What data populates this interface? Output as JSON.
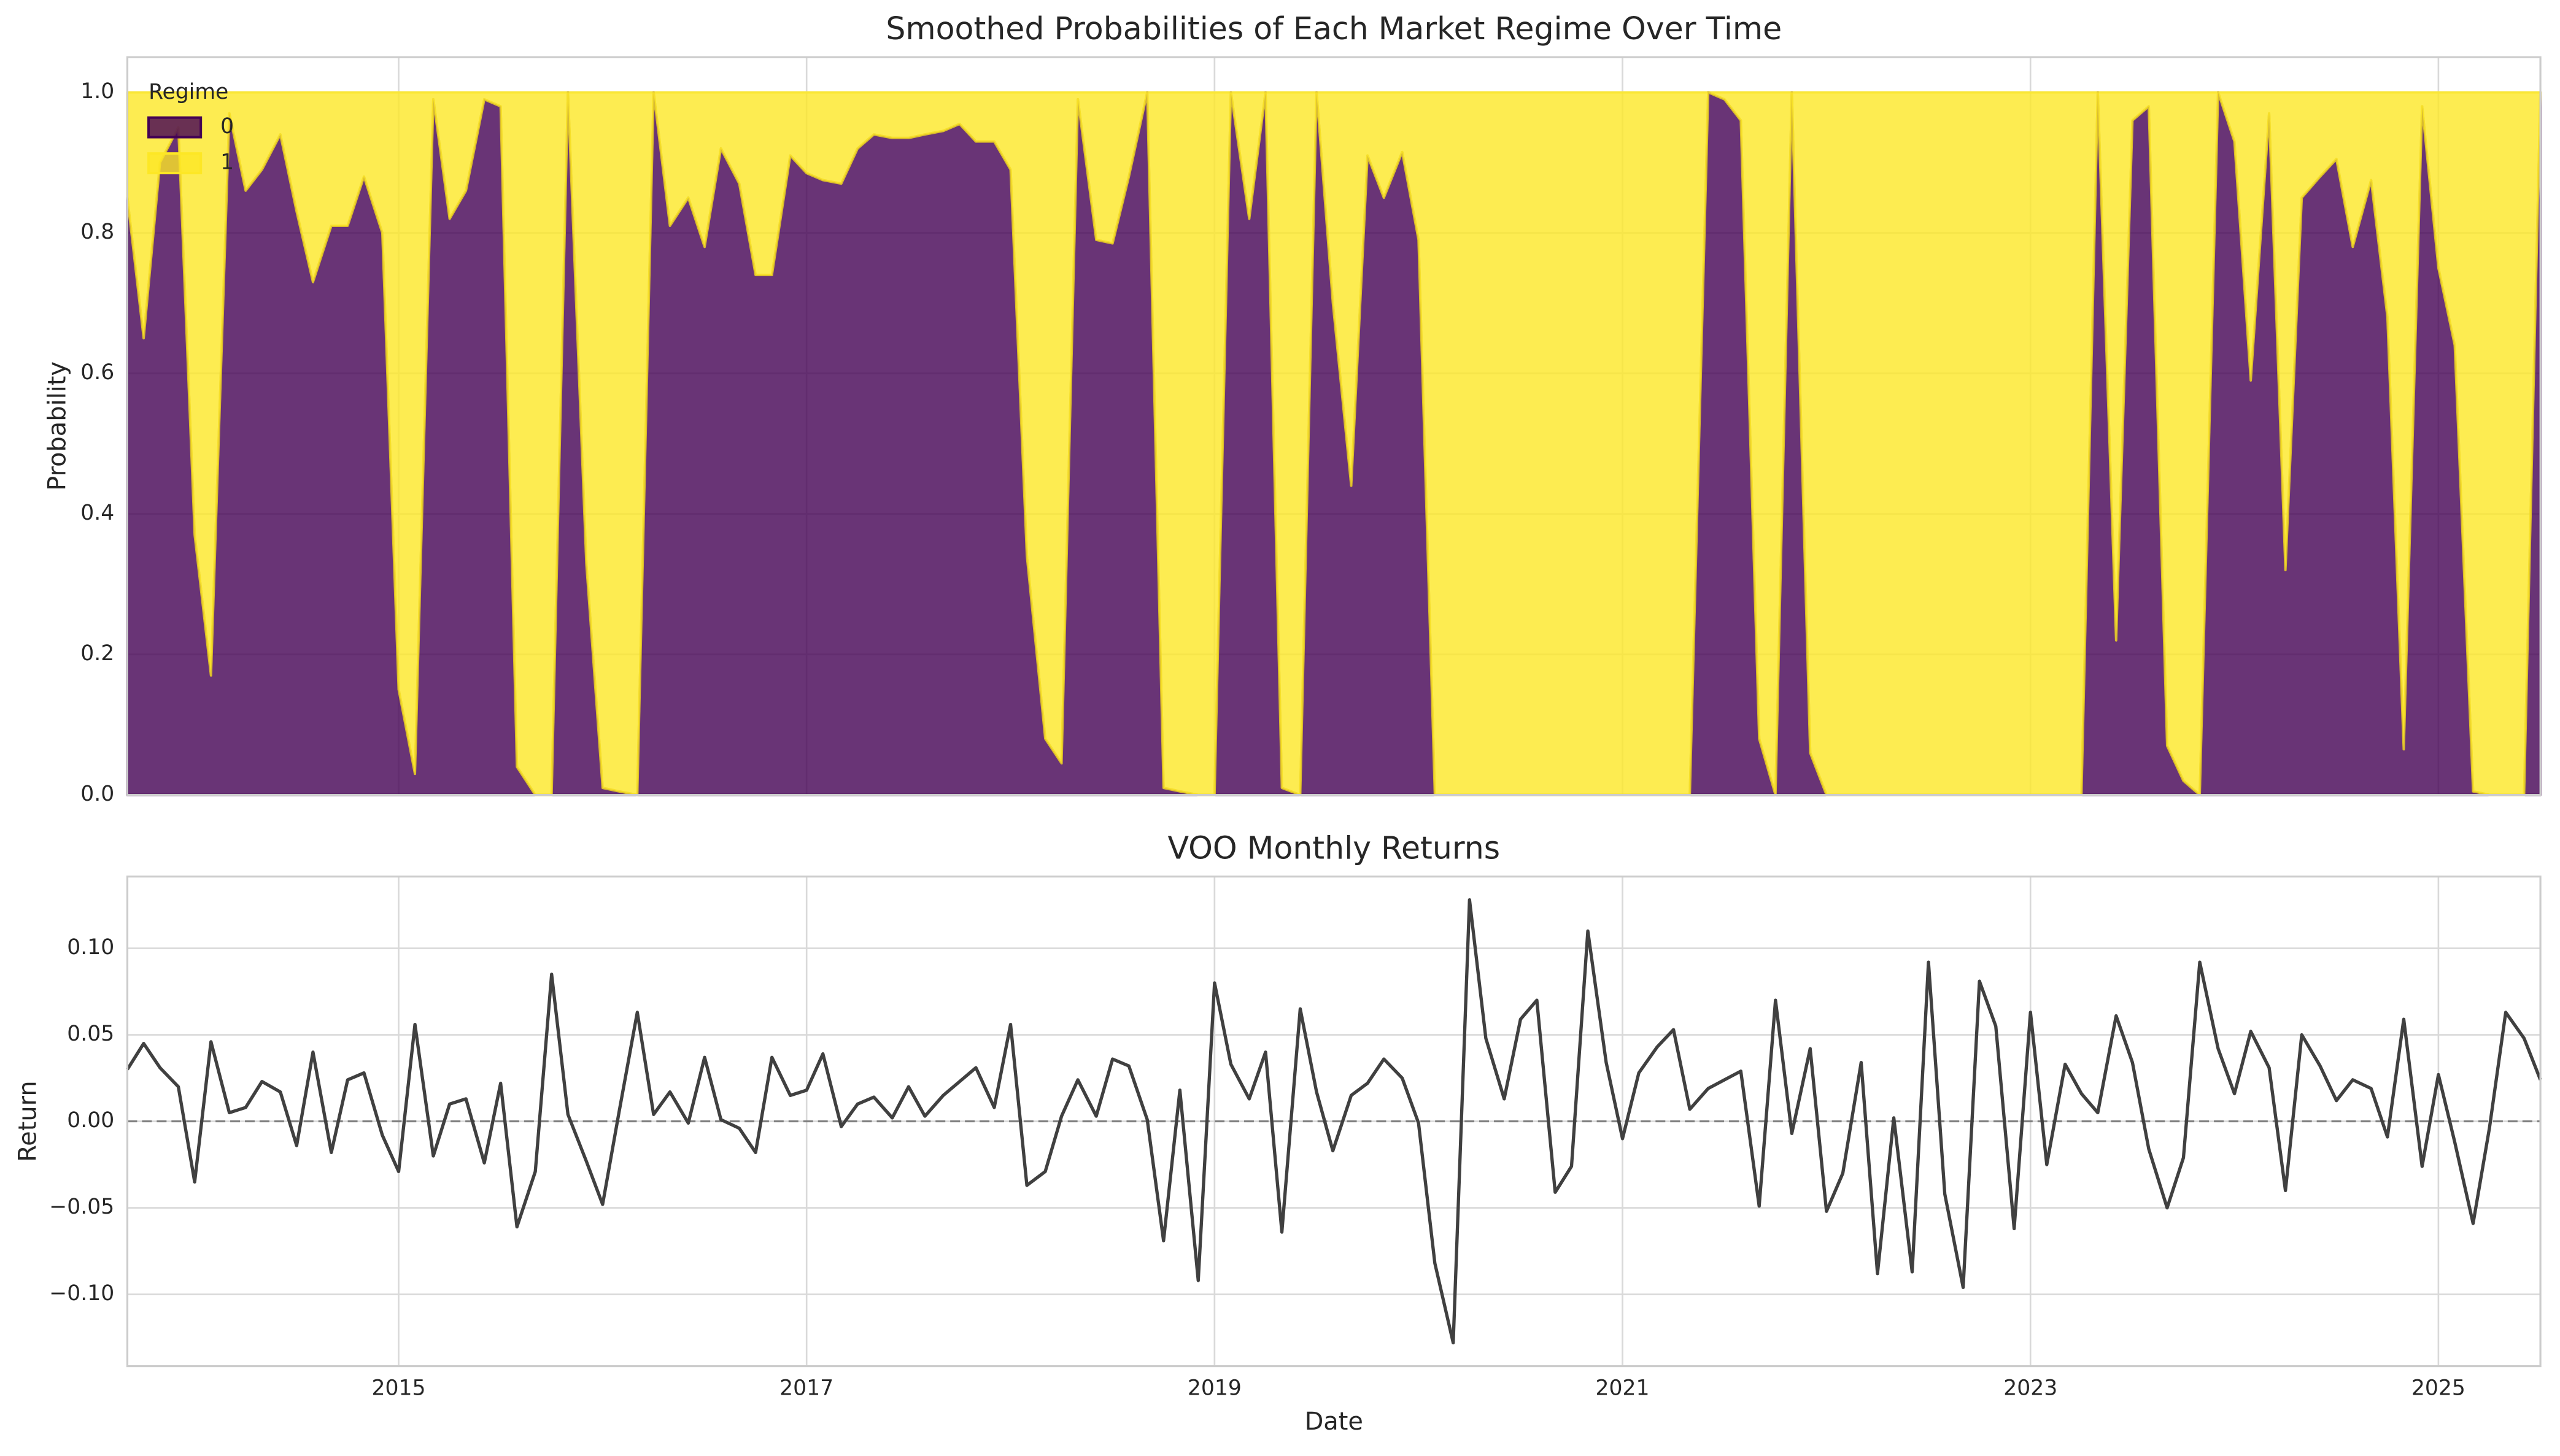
{
  "chart_data": [
    {
      "type": "area",
      "title": "Smoothed Probabilities of Each Market Regime Over Time",
      "ylabel": "Probability",
      "legend_title": "Regime",
      "legend": "upper left",
      "x": [
        2013.67,
        2013.75,
        2013.83,
        2013.92,
        2014.0,
        2014.08,
        2014.17,
        2014.25,
        2014.33,
        2014.42,
        2014.5,
        2014.58,
        2014.67,
        2014.75,
        2014.83,
        2014.92,
        2015.0,
        2015.08,
        2015.17,
        2015.25,
        2015.33,
        2015.42,
        2015.5,
        2015.58,
        2015.67,
        2015.75,
        2015.83,
        2015.92,
        2016.0,
        2016.08,
        2016.17,
        2016.25,
        2016.33,
        2016.42,
        2016.5,
        2016.58,
        2016.67,
        2016.75,
        2016.83,
        2016.92,
        2017.0,
        2017.08,
        2017.17,
        2017.25,
        2017.33,
        2017.42,
        2017.5,
        2017.58,
        2017.67,
        2017.75,
        2017.83,
        2017.92,
        2018.0,
        2018.08,
        2018.17,
        2018.25,
        2018.33,
        2018.42,
        2018.5,
        2018.58,
        2018.67,
        2018.75,
        2018.83,
        2018.92,
        2019.0,
        2019.08,
        2019.17,
        2019.25,
        2019.33,
        2019.42,
        2019.5,
        2019.58,
        2019.67,
        2019.75,
        2019.83,
        2019.92,
        2020.0,
        2020.08,
        2020.17,
        2020.25,
        2020.33,
        2020.42,
        2020.5,
        2020.58,
        2020.67,
        2020.75,
        2020.83,
        2020.92,
        2021.0,
        2021.08,
        2021.17,
        2021.25,
        2021.33,
        2021.42,
        2021.5,
        2021.58,
        2021.67,
        2021.75,
        2021.83,
        2021.92,
        2022.0,
        2022.08,
        2022.17,
        2022.25,
        2022.33,
        2022.42,
        2022.5,
        2022.58,
        2022.67,
        2022.75,
        2022.83,
        2022.92,
        2023.0,
        2023.08,
        2023.17,
        2023.25,
        2023.33,
        2023.42,
        2023.5,
        2023.58,
        2023.67,
        2023.75,
        2023.83,
        2023.92,
        2024.0,
        2024.08,
        2024.17,
        2024.25,
        2024.33,
        2024.42,
        2024.5,
        2024.58,
        2024.67,
        2024.75,
        2024.83,
        2024.92,
        2025.0,
        2025.08,
        2025.17,
        2025.25,
        2025.33,
        2025.42,
        2025.5
      ],
      "series": [
        {
          "name": "0",
          "color": "#440154",
          "values": [
            0.85,
            0.65,
            0.9,
            0.95,
            0.37,
            0.17,
            0.97,
            0.86,
            0.89,
            0.94,
            0.83,
            0.73,
            0.81,
            0.81,
            0.88,
            0.8,
            0.15,
            0.03,
            0.99,
            0.82,
            0.86,
            0.99,
            0.98,
            0.04,
            0,
            0,
            1,
            0.33,
            0.01,
            0.005,
            0,
            1,
            0.81,
            0.85,
            0.78,
            0.92,
            0.87,
            0.74,
            0.74,
            0.91,
            0.885,
            0.875,
            0.87,
            0.92,
            0.94,
            0.935,
            0.935,
            0.94,
            0.945,
            0.955,
            0.93,
            0.93,
            0.89,
            0.34,
            0.08,
            0.045,
            0.99,
            0.79,
            0.785,
            0.88,
            1,
            0.01,
            0.005,
            0,
            0,
            1,
            0.82,
            1,
            0.01,
            0,
            1,
            0.7,
            0.44,
            0.91,
            0.85,
            0.915,
            0.79,
            0,
            0,
            0,
            0,
            0,
            0,
            0,
            0,
            0,
            0,
            0,
            0,
            0,
            0,
            0,
            0,
            1,
            0.99,
            0.96,
            0.08,
            0,
            1,
            0.06,
            0,
            0,
            0,
            0,
            0,
            0,
            0,
            0,
            0,
            0,
            0,
            0,
            0,
            0,
            0,
            0,
            1,
            0.22,
            0.96,
            0.98,
            0.07,
            0.02,
            0,
            1,
            0.93,
            0.59,
            0.97,
            0.32,
            0.85,
            0.88,
            0.905,
            0.78,
            0.875,
            0.68,
            0.065,
            0.98,
            0.75,
            0.64,
            0.005,
            0,
            0,
            0,
            1
          ]
        },
        {
          "name": "1",
          "color": "#fde725",
          "values": [
            0.15,
            0.35,
            0.1,
            0.05,
            0.63,
            0.83,
            0.03,
            0.14,
            0.11,
            0.06,
            0.17,
            0.27,
            0.19,
            0.19,
            0.12,
            0.2,
            0.85,
            0.97,
            0.01,
            0.18,
            0.14,
            0.01,
            0.02,
            0.96,
            1,
            1,
            0,
            0.67,
            0.99,
            0.995,
            1,
            0,
            0.19,
            0.15,
            0.22,
            0.08,
            0.13,
            0.26,
            0.26,
            0.09,
            0.115,
            0.125,
            0.13,
            0.08,
            0.06,
            0.065,
            0.065,
            0.06,
            0.055,
            0.045,
            0.07,
            0.07,
            0.11,
            0.66,
            0.92,
            0.955,
            0.01,
            0.21,
            0.215,
            0.12,
            0,
            0.99,
            0.995,
            1,
            1,
            0,
            0.18,
            0,
            0.99,
            1,
            0,
            0.3,
            0.56,
            0.09,
            0.15,
            0.085,
            0.21,
            1,
            1,
            1,
            1,
            1,
            1,
            1,
            1,
            1,
            1,
            1,
            1,
            1,
            1,
            1,
            1,
            0,
            0.01,
            0.04,
            0.92,
            1,
            0,
            0.94,
            1,
            1,
            1,
            1,
            1,
            1,
            1,
            1,
            1,
            1,
            1,
            1,
            1,
            1,
            1,
            1,
            0,
            0.78,
            0.04,
            0.02,
            0.93,
            0.98,
            1,
            0,
            0.07,
            0.41,
            0.03,
            0.68,
            0.15,
            0.12,
            0.095,
            0.22,
            0.125,
            0.32,
            0.935,
            0.02,
            0.25,
            0.36,
            0.995,
            1,
            1,
            1,
            0
          ]
        }
      ],
      "xlim": [
        2013.67,
        2025.5
      ],
      "ylim": [
        0,
        1.05
      ],
      "yticks": [
        {
          "value": 0,
          "label": "0.0"
        },
        0.2,
        0.4,
        0.6,
        0.8,
        {
          "value": 1,
          "label": "1.0"
        }
      ],
      "grid": true
    },
    {
      "type": "line",
      "title": "VOO Monthly Returns",
      "xlabel": "Date",
      "ylabel": "Return",
      "x": [
        2013.67,
        2013.75,
        2013.83,
        2013.92,
        2014.0,
        2014.08,
        2014.17,
        2014.25,
        2014.33,
        2014.42,
        2014.5,
        2014.58,
        2014.67,
        2014.75,
        2014.83,
        2014.92,
        2015.0,
        2015.08,
        2015.17,
        2015.25,
        2015.33,
        2015.42,
        2015.5,
        2015.58,
        2015.67,
        2015.75,
        2015.83,
        2015.92,
        2016.0,
        2016.08,
        2016.17,
        2016.25,
        2016.33,
        2016.42,
        2016.5,
        2016.58,
        2016.67,
        2016.75,
        2016.83,
        2016.92,
        2017.0,
        2017.08,
        2017.17,
        2017.25,
        2017.33,
        2017.42,
        2017.5,
        2017.58,
        2017.67,
        2017.75,
        2017.83,
        2017.92,
        2018.0,
        2018.08,
        2018.17,
        2018.25,
        2018.33,
        2018.42,
        2018.5,
        2018.58,
        2018.67,
        2018.75,
        2018.83,
        2018.92,
        2019.0,
        2019.08,
        2019.17,
        2019.25,
        2019.33,
        2019.42,
        2019.5,
        2019.58,
        2019.67,
        2019.75,
        2019.83,
        2019.92,
        2020.0,
        2020.08,
        2020.17,
        2020.25,
        2020.33,
        2020.42,
        2020.5,
        2020.58,
        2020.67,
        2020.75,
        2020.83,
        2020.92,
        2021.0,
        2021.08,
        2021.17,
        2021.25,
        2021.33,
        2021.42,
        2021.5,
        2021.58,
        2021.67,
        2021.75,
        2021.83,
        2021.92,
        2022.0,
        2022.08,
        2022.17,
        2022.25,
        2022.33,
        2022.42,
        2022.5,
        2022.58,
        2022.67,
        2022.75,
        2022.83,
        2022.92,
        2023.0,
        2023.08,
        2023.17,
        2023.25,
        2023.33,
        2023.42,
        2023.5,
        2023.58,
        2023.67,
        2023.75,
        2023.83,
        2023.92,
        2024.0,
        2024.08,
        2024.17,
        2024.25,
        2024.33,
        2024.42,
        2024.5,
        2024.58,
        2024.67,
        2024.75,
        2024.83,
        2024.92,
        2025.0,
        2025.08,
        2025.17,
        2025.25,
        2025.33,
        2025.42,
        2025.5
      ],
      "series": [
        {
          "name": "Return",
          "color": "#404040",
          "values": [
            0.03,
            0.045,
            0.031,
            0.02,
            -0.035,
            0.046,
            0.005,
            0.008,
            0.023,
            0.017,
            -0.014,
            0.04,
            -0.018,
            0.024,
            0.028,
            -0.008,
            -0.029,
            0.056,
            -0.02,
            0.01,
            0.013,
            -0.024,
            0.022,
            -0.061,
            -0.029,
            0.085,
            0.004,
            -0.023,
            -0.048,
            0.005,
            0.063,
            0.004,
            0.017,
            -0.001,
            0.037,
            0.001,
            -0.004,
            -0.018,
            0.037,
            0.015,
            0.018,
            0.039,
            -0.003,
            0.01,
            0.014,
            0.002,
            0.02,
            0.003,
            0.015,
            0.023,
            0.031,
            0.008,
            0.056,
            -0.037,
            -0.029,
            0.003,
            0.024,
            0.003,
            0.036,
            0.032,
            0.001,
            -0.069,
            0.018,
            -0.092,
            0.08,
            0.033,
            0.013,
            0.04,
            -0.064,
            0.065,
            0.017,
            -0.017,
            0.015,
            0.022,
            0.036,
            0.025,
            -0.001,
            -0.082,
            -0.128,
            0.128,
            0.048,
            0.013,
            0.059,
            0.07,
            -0.041,
            -0.026,
            0.11,
            0.034,
            -0.01,
            0.028,
            0.043,
            0.053,
            0.007,
            0.019,
            0.024,
            0.029,
            -0.049,
            0.07,
            -0.007,
            0.042,
            -0.052,
            -0.03,
            0.034,
            -0.088,
            0.002,
            -0.087,
            0.092,
            -0.042,
            -0.096,
            0.081,
            0.055,
            -0.062,
            0.063,
            -0.025,
            0.033,
            0.016,
            0.005,
            0.061,
            0.034,
            -0.016,
            -0.05,
            -0.021,
            0.092,
            0.042,
            0.016,
            0.052,
            0.031,
            -0.04,
            0.05,
            0.032,
            0.012,
            0.024,
            0.019,
            -0.009,
            0.059,
            -0.026,
            0.027,
            -0.012,
            -0.059,
            -0.004,
            0.063,
            0.048,
            0.024
          ]
        }
      ],
      "hline": 0,
      "xlim": [
        2013.67,
        2025.5
      ],
      "ylim": [
        -0.1415,
        0.1415
      ],
      "xticks": [
        2015,
        2017,
        2019,
        2021,
        2023,
        2025
      ],
      "yticks": [
        {
          "value": -0.1,
          "label": "−0.10"
        },
        {
          "value": -0.05,
          "label": "−0.05"
        },
        {
          "value": 0,
          "label": "0.00"
        },
        0.05,
        {
          "value": 0.1,
          "label": "0.10"
        }
      ],
      "grid": true
    }
  ]
}
